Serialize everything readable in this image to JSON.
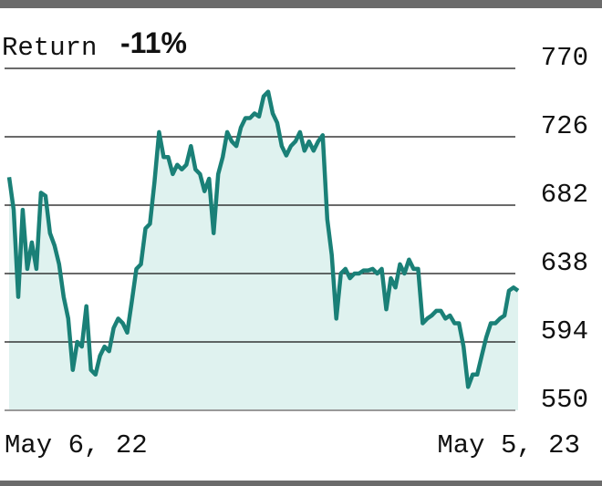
{
  "chart_data": {
    "type": "line",
    "title": "Return",
    "subtitle": "-11%",
    "categories": [
      "May 6, 22",
      null,
      null,
      null,
      null,
      null,
      null,
      null,
      null,
      null,
      null,
      null,
      null,
      null,
      null,
      null,
      null,
      null,
      null,
      null,
      null,
      null,
      null,
      null,
      null,
      null,
      null,
      null,
      null,
      null,
      null,
      null,
      null,
      null,
      null,
      null,
      null,
      null,
      null,
      null,
      null,
      null,
      null,
      null,
      null,
      null,
      null,
      null,
      null,
      null,
      null,
      null,
      null,
      null,
      null,
      null,
      null,
      null,
      null,
      null,
      null,
      null,
      null,
      null,
      null,
      null,
      null,
      null,
      null,
      null,
      null,
      null,
      null,
      null,
      null,
      null,
      null,
      null,
      null,
      null,
      null,
      null,
      null,
      null,
      null,
      null,
      null,
      null,
      null,
      null,
      null,
      null,
      null,
      null,
      null,
      null,
      null,
      null,
      null,
      null,
      null,
      null,
      null,
      null,
      null,
      null,
      null,
      null,
      null,
      null,
      null,
      null,
      "May 5, 23"
    ],
    "values": [
      700,
      679,
      623,
      679,
      641,
      658,
      641,
      690,
      688,
      664,
      656,
      644,
      623,
      609,
      576,
      594,
      591,
      617,
      576,
      573,
      585,
      591,
      588,
      603,
      609,
      606,
      600,
      620,
      641,
      644,
      667,
      670,
      697,
      729,
      713,
      713,
      702,
      708,
      705,
      708,
      720,
      705,
      702,
      691,
      699,
      664,
      702,
      713,
      729,
      723,
      720,
      732,
      738,
      738,
      741,
      739,
      752,
      755,
      741,
      735,
      720,
      714,
      720,
      723,
      729,
      717,
      723,
      717,
      723,
      727,
      673,
      650,
      609,
      638,
      641,
      635,
      638,
      638,
      640,
      640,
      641,
      638,
      641,
      615,
      635,
      629,
      644,
      638,
      647,
      641,
      641,
      606,
      609,
      611,
      614,
      614,
      609,
      611,
      606,
      606,
      591,
      565,
      573,
      573,
      585,
      597,
      606,
      606,
      609,
      611,
      627,
      629,
      627
    ],
    "color": "#1a8077",
    "fill": "#dff2ef",
    "ylim": [
      550,
      770
    ],
    "yticks": [
      550,
      594,
      638,
      682,
      726,
      770
    ],
    "grid": true
  }
}
